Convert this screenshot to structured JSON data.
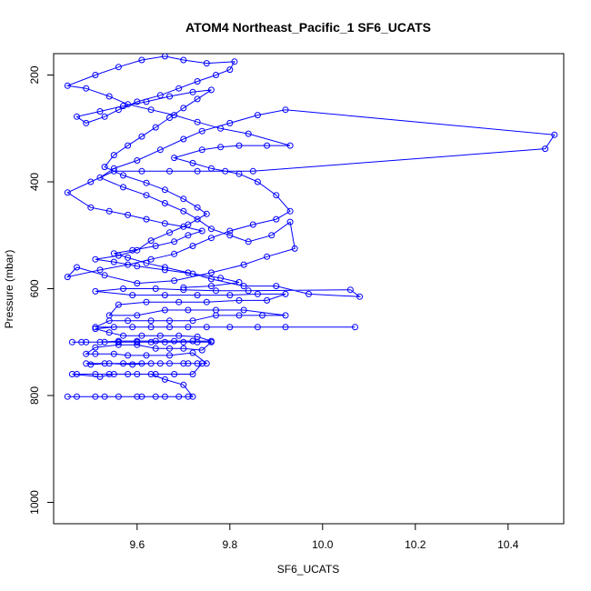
{
  "chart_data": {
    "type": "line",
    "title": "ATOM4 Northeast_Pacific_1 SF6_UCATS",
    "xlabel": "SF6_UCATS",
    "ylabel": "Pressure (mbar)",
    "xlim": [
      9.42,
      10.52
    ],
    "ylim": [
      1040,
      160
    ],
    "y_reversed": true,
    "grid": false,
    "series_color": "#0000ff",
    "marker": "open-circle",
    "x_ticks": [
      9.6,
      9.8,
      10.0,
      10.2,
      10.4
    ],
    "x_tick_labels": [
      "9.6",
      "9.8",
      "10.0",
      "10.2",
      "10.4"
    ],
    "y_ticks": [
      200,
      400,
      600,
      800,
      1000
    ],
    "y_tick_labels": [
      "200",
      "400",
      "600",
      "800",
      "1000"
    ],
    "series": [
      {
        "points": [
          [
            9.45,
            802
          ],
          [
            9.47,
            802
          ],
          [
            9.51,
            802
          ],
          [
            9.53,
            802
          ],
          [
            9.56,
            802
          ],
          [
            9.6,
            802
          ],
          [
            9.61,
            802
          ],
          [
            9.64,
            802
          ],
          [
            9.66,
            802
          ],
          [
            9.69,
            802
          ],
          [
            9.71,
            802
          ],
          [
            9.72,
            802
          ],
          [
            9.7,
            780
          ],
          [
            9.66,
            770
          ],
          [
            9.63,
            760
          ],
          [
            9.58,
            760
          ],
          [
            9.54,
            760
          ],
          [
            9.51,
            760
          ],
          [
            9.47,
            760
          ],
          [
            9.46,
            760
          ],
          [
            9.52,
            765
          ],
          [
            9.55,
            760
          ],
          [
            9.6,
            760
          ],
          [
            9.64,
            760
          ],
          [
            9.68,
            760
          ],
          [
            9.72,
            760
          ],
          [
            9.74,
            740
          ],
          [
            9.7,
            740
          ],
          [
            9.65,
            740
          ],
          [
            9.61,
            740
          ],
          [
            9.57,
            740
          ],
          [
            9.53,
            740
          ],
          [
            9.49,
            740
          ],
          [
            9.5,
            742
          ],
          [
            9.54,
            740
          ],
          [
            9.59,
            742
          ],
          [
            9.63,
            740
          ],
          [
            9.67,
            740
          ],
          [
            9.71,
            740
          ],
          [
            9.73,
            740
          ],
          [
            9.75,
            740
          ],
          [
            9.72,
            720
          ],
          [
            9.67,
            725
          ],
          [
            9.62,
            725
          ],
          [
            9.58,
            725
          ],
          [
            9.55,
            722
          ],
          [
            9.51,
            722
          ],
          [
            9.49,
            722
          ],
          [
            9.51,
            710
          ],
          [
            9.56,
            705
          ],
          [
            9.6,
            705
          ],
          [
            9.64,
            712
          ],
          [
            9.67,
            712
          ],
          [
            9.7,
            712
          ],
          [
            9.74,
            715
          ],
          [
            9.76,
            700
          ],
          [
            9.73,
            700
          ],
          [
            9.7,
            700
          ],
          [
            9.66,
            700
          ],
          [
            9.63,
            700
          ],
          [
            9.6,
            700
          ],
          [
            9.56,
            700
          ],
          [
            9.53,
            700
          ],
          [
            9.49,
            700
          ],
          [
            9.46,
            700
          ],
          [
            9.48,
            700
          ],
          [
            9.52,
            700
          ],
          [
            9.56,
            698
          ],
          [
            9.6,
            698
          ],
          [
            9.64,
            698
          ],
          [
            9.68,
            698
          ],
          [
            9.72,
            698
          ],
          [
            9.76,
            698
          ],
          [
            9.73,
            690
          ],
          [
            9.69,
            688
          ],
          [
            9.65,
            688
          ],
          [
            9.61,
            688
          ],
          [
            9.57,
            688
          ],
          [
            9.54,
            682
          ],
          [
            9.51,
            675
          ],
          [
            9.55,
            672
          ],
          [
            9.59,
            672
          ],
          [
            9.63,
            672
          ],
          [
            9.67,
            672
          ],
          [
            9.71,
            672
          ],
          [
            9.75,
            672
          ],
          [
            9.8,
            672
          ],
          [
            9.86,
            672
          ],
          [
            9.92,
            672
          ],
          [
            10.07,
            672
          ],
          [
            9.51,
            672
          ],
          [
            9.54,
            660
          ],
          [
            9.58,
            660
          ],
          [
            9.63,
            660
          ],
          [
            9.67,
            660
          ],
          [
            9.72,
            660
          ],
          [
            9.77,
            650
          ],
          [
            9.82,
            650
          ],
          [
            9.87,
            650
          ],
          [
            9.92,
            650
          ],
          [
            9.83,
            640
          ],
          [
            9.77,
            640
          ],
          [
            9.71,
            640
          ],
          [
            9.66,
            640
          ],
          [
            9.6,
            650
          ],
          [
            9.54,
            650
          ],
          [
            9.56,
            630
          ],
          [
            9.62,
            625
          ],
          [
            9.69,
            625
          ],
          [
            9.75,
            625
          ],
          [
            9.82,
            622
          ],
          [
            9.88,
            622
          ],
          [
            9.92,
            610
          ],
          [
            9.86,
            610
          ],
          [
            9.8,
            612
          ],
          [
            9.73,
            612
          ],
          [
            9.66,
            612
          ],
          [
            9.59,
            612
          ],
          [
            9.51,
            605
          ],
          [
            9.57,
            600
          ],
          [
            9.64,
            600
          ],
          [
            9.7,
            602
          ],
          [
            9.77,
            604
          ],
          [
            9.84,
            604
          ],
          [
            10.06,
            602
          ],
          [
            10.08,
            615
          ],
          [
            9.97,
            610
          ],
          [
            9.9,
            595
          ],
          [
            9.83,
            595
          ],
          [
            9.76,
            582
          ],
          [
            9.71,
            570
          ],
          [
            9.66,
            560
          ],
          [
            9.62,
            552
          ],
          [
            9.58,
            542
          ],
          [
            9.55,
            534
          ],
          [
            9.59,
            528
          ],
          [
            9.64,
            520
          ],
          [
            9.68,
            512
          ],
          [
            9.71,
            500
          ],
          [
            9.74,
            492
          ],
          [
            9.7,
            484
          ],
          [
            9.66,
            478
          ],
          [
            9.62,
            470
          ],
          [
            9.58,
            462
          ],
          [
            9.54,
            455
          ],
          [
            9.5,
            448
          ],
          [
            9.45,
            420
          ],
          [
            9.5,
            400
          ],
          [
            9.55,
            380
          ],
          [
            9.61,
            380
          ],
          [
            9.67,
            380
          ],
          [
            9.73,
            380
          ],
          [
            9.79,
            380
          ],
          [
            9.85,
            380
          ],
          [
            10.48,
            338
          ],
          [
            10.5,
            312
          ],
          [
            9.92,
            265
          ],
          [
            9.86,
            275
          ],
          [
            9.8,
            290
          ],
          [
            9.74,
            305
          ],
          [
            9.7,
            320
          ],
          [
            9.65,
            340
          ],
          [
            9.6,
            360
          ],
          [
            9.55,
            375
          ],
          [
            9.52,
            392
          ],
          [
            9.57,
            410
          ],
          [
            9.62,
            425
          ],
          [
            9.66,
            440
          ],
          [
            9.7,
            455
          ],
          [
            9.73,
            470
          ],
          [
            9.76,
            488
          ],
          [
            9.8,
            500
          ],
          [
            9.84,
            512
          ],
          [
            9.89,
            500
          ],
          [
            9.93,
            475
          ],
          [
            9.94,
            525
          ],
          [
            9.88,
            540
          ],
          [
            9.83,
            555
          ],
          [
            9.76,
            570
          ],
          [
            9.68,
            585
          ],
          [
            9.6,
            590
          ],
          [
            9.53,
            575
          ],
          [
            9.47,
            560
          ],
          [
            9.45,
            578
          ],
          [
            9.52,
            565
          ],
          [
            9.58,
            555
          ],
          [
            9.63,
            545
          ],
          [
            9.68,
            535
          ],
          [
            9.72,
            520
          ],
          [
            9.76,
            505
          ],
          [
            9.8,
            492
          ],
          [
            9.85,
            480
          ],
          [
            9.9,
            470
          ],
          [
            9.93,
            455
          ],
          [
            9.9,
            425
          ],
          [
            9.86,
            400
          ],
          [
            9.82,
            385
          ],
          [
            9.76,
            375
          ],
          [
            9.72,
            365
          ],
          [
            9.68,
            355
          ],
          [
            9.74,
            340
          ],
          [
            9.78,
            335
          ],
          [
            9.82,
            332
          ],
          [
            9.88,
            332
          ],
          [
            9.93,
            332
          ],
          [
            9.84,
            310
          ],
          [
            9.78,
            300
          ],
          [
            9.73,
            288
          ],
          [
            9.68,
            275
          ],
          [
            9.63,
            265
          ],
          [
            9.58,
            255
          ],
          [
            9.54,
            240
          ],
          [
            9.49,
            225
          ],
          [
            9.45,
            220
          ],
          [
            9.51,
            200
          ],
          [
            9.56,
            185
          ],
          [
            9.61,
            172
          ],
          [
            9.66,
            165
          ],
          [
            9.7,
            172
          ],
          [
            9.75,
            178
          ],
          [
            9.81,
            175
          ],
          [
            9.8,
            190
          ],
          [
            9.77,
            200
          ],
          [
            9.73,
            212
          ],
          [
            9.69,
            225
          ],
          [
            9.65,
            238
          ],
          [
            9.6,
            250
          ],
          [
            9.56,
            265
          ],
          [
            9.53,
            278
          ],
          [
            9.49,
            290
          ],
          [
            9.47,
            278
          ],
          [
            9.52,
            268
          ],
          [
            9.57,
            258
          ],
          [
            9.62,
            250
          ],
          [
            9.67,
            240
          ],
          [
            9.72,
            232
          ],
          [
            9.76,
            228
          ],
          [
            9.73,
            245
          ],
          [
            9.7,
            262
          ],
          [
            9.67,
            280
          ],
          [
            9.64,
            298
          ],
          [
            9.61,
            315
          ],
          [
            9.58,
            332
          ],
          [
            9.55,
            350
          ],
          [
            9.53,
            372
          ],
          [
            9.57,
            388
          ],
          [
            9.62,
            402
          ],
          [
            9.66,
            415
          ],
          [
            9.7,
            432
          ],
          [
            9.73,
            448
          ],
          [
            9.75,
            460
          ],
          [
            9.71,
            480
          ],
          [
            9.67,
            495
          ],
          [
            9.63,
            510
          ],
          [
            9.6,
            528
          ],
          [
            9.56,
            538
          ],
          [
            9.51,
            545
          ],
          [
            9.55,
            550
          ],
          [
            9.6,
            558
          ],
          [
            9.66,
            565
          ],
          [
            9.72,
            572
          ],
          [
            9.78,
            580
          ],
          [
            9.82,
            588
          ],
          [
            9.76,
            595
          ],
          [
            9.7,
            598
          ]
        ]
      }
    ]
  }
}
